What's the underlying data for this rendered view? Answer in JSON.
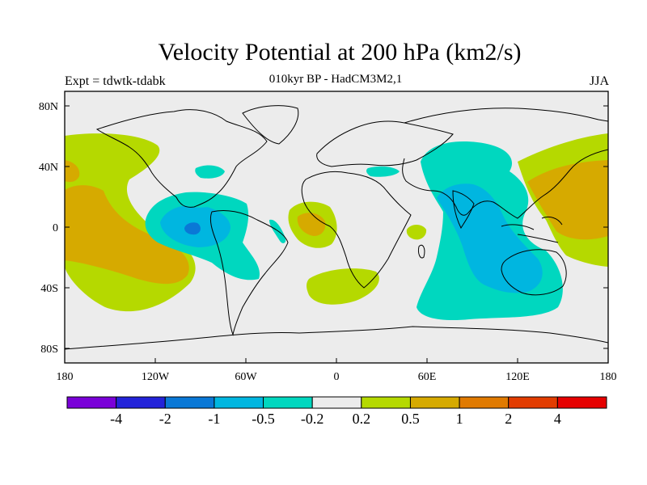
{
  "title": "Velocity Potential at 200 hPa (km2/s)",
  "subtitle": "010kyr BP - HadCM3M2,1",
  "experiment_label": "Expt = tdwtk-tdabk",
  "season": "JJA",
  "axes": {
    "lat_ticks": [
      "80N",
      "40N",
      "0",
      "40S",
      "80S"
    ],
    "lon_ticks": [
      "180",
      "120W",
      "60W",
      "0",
      "60E",
      "120E",
      "180"
    ]
  },
  "colorbar": {
    "labels": [
      "-4",
      "-2",
      "-1",
      "-0.5",
      "-0.2",
      "0.2",
      "0.5",
      "1",
      "2",
      "4"
    ],
    "colors": [
      "#7a00d8",
      "#2323d9",
      "#0a78d6",
      "#00b6e0",
      "#00d7bf",
      "#ececec",
      "#b5d900",
      "#d6aa00",
      "#e07a00",
      "#e23c00",
      "#e60000"
    ]
  },
  "fill_colors": {
    "background": "#ececec",
    "neg_weak": "#00d7bf",
    "neg_mid": "#00b6e0",
    "neg_strong": "#0a78d6",
    "pos_weak": "#b5d900",
    "pos_mid": "#d6aa00"
  }
}
